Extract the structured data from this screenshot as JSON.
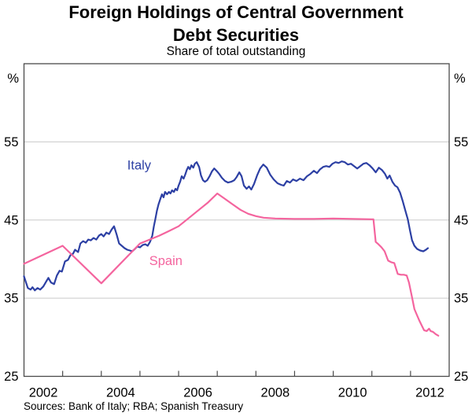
{
  "header": {
    "title_line1": "Foreign Holdings of Central Government",
    "title_line2": "Debt Securities",
    "subtitle": "Share of total outstanding"
  },
  "footer": {
    "sources": "Sources: Bank of Italy; RBA; Spanish Treasury"
  },
  "axes": {
    "unit_left": "%",
    "unit_right": "%"
  },
  "chart_data": {
    "type": "line",
    "title": "Foreign Holdings of Central Government Debt Securities",
    "subtitle": "Share of total outstanding",
    "ylabel": "%",
    "ylim": [
      25,
      65
    ],
    "yticks": [
      25,
      35,
      45,
      55
    ],
    "gridlines": [
      35,
      45,
      55
    ],
    "xlim": [
      2002,
      2013
    ],
    "xticks": [
      2003,
      2004,
      2005,
      2006,
      2007,
      2008,
      2009,
      2010,
      2011,
      2012
    ],
    "xtick_labels": [
      {
        "text": "2002",
        "at": 2002.5
      },
      {
        "text": "2004",
        "at": 2004.5
      },
      {
        "text": "2006",
        "at": 2006.5
      },
      {
        "text": "2008",
        "at": 2008.5
      },
      {
        "text": "2010",
        "at": 2010.5
      },
      {
        "text": "2012",
        "at": 2012.5
      }
    ],
    "grid": "horizontal",
    "legend_position": "inline-labels",
    "frame_color": "#4a4a4a",
    "grid_color": "#c9c9c9",
    "series": [
      {
        "name": "Italy",
        "color": "#2d40a4",
        "label_at": [
          2004.98,
          52.0
        ],
        "points": [
          [
            2002.0,
            37.8
          ],
          [
            2002.06,
            36.9
          ],
          [
            2002.1,
            36.3
          ],
          [
            2002.17,
            36.1
          ],
          [
            2002.22,
            36.4
          ],
          [
            2002.28,
            36.0
          ],
          [
            2002.35,
            36.3
          ],
          [
            2002.42,
            36.1
          ],
          [
            2002.5,
            36.5
          ],
          [
            2002.57,
            37.1
          ],
          [
            2002.63,
            37.6
          ],
          [
            2002.7,
            37.0
          ],
          [
            2002.78,
            36.8
          ],
          [
            2002.85,
            37.9
          ],
          [
            2002.92,
            38.5
          ],
          [
            2002.98,
            38.4
          ],
          [
            2003.06,
            39.7
          ],
          [
            2003.14,
            39.9
          ],
          [
            2003.2,
            40.5
          ],
          [
            2003.27,
            40.7
          ],
          [
            2003.32,
            41.2
          ],
          [
            2003.4,
            40.9
          ],
          [
            2003.46,
            42.0
          ],
          [
            2003.53,
            42.3
          ],
          [
            2003.6,
            42.1
          ],
          [
            2003.66,
            42.5
          ],
          [
            2003.73,
            42.4
          ],
          [
            2003.8,
            42.7
          ],
          [
            2003.87,
            42.5
          ],
          [
            2003.94,
            43.0
          ],
          [
            2004.0,
            43.2
          ],
          [
            2004.06,
            42.9
          ],
          [
            2004.13,
            43.4
          ],
          [
            2004.2,
            43.2
          ],
          [
            2004.27,
            43.8
          ],
          [
            2004.33,
            44.2
          ],
          [
            2004.4,
            43.1
          ],
          [
            2004.46,
            42.0
          ],
          [
            2004.53,
            41.7
          ],
          [
            2004.6,
            41.4
          ],
          [
            2004.67,
            41.2
          ],
          [
            2004.74,
            41.1
          ],
          [
            2004.8,
            41.0
          ],
          [
            2004.87,
            41.3
          ],
          [
            2004.93,
            41.6
          ],
          [
            2005.0,
            41.5
          ],
          [
            2005.07,
            41.8
          ],
          [
            2005.14,
            41.9
          ],
          [
            2005.2,
            41.7
          ],
          [
            2005.26,
            42.2
          ],
          [
            2005.32,
            43.0
          ],
          [
            2005.36,
            44.2
          ],
          [
            2005.4,
            45.2
          ],
          [
            2005.44,
            46.2
          ],
          [
            2005.48,
            47.0
          ],
          [
            2005.52,
            47.6
          ],
          [
            2005.57,
            48.3
          ],
          [
            2005.61,
            47.9
          ],
          [
            2005.65,
            48.6
          ],
          [
            2005.7,
            48.3
          ],
          [
            2005.75,
            48.6
          ],
          [
            2005.79,
            48.4
          ],
          [
            2005.83,
            48.8
          ],
          [
            2005.88,
            48.6
          ],
          [
            2005.92,
            49.0
          ],
          [
            2005.96,
            48.8
          ],
          [
            2006.0,
            49.4
          ],
          [
            2006.04,
            49.9
          ],
          [
            2006.08,
            50.6
          ],
          [
            2006.13,
            50.3
          ],
          [
            2006.17,
            50.8
          ],
          [
            2006.21,
            51.4
          ],
          [
            2006.25,
            51.8
          ],
          [
            2006.29,
            51.5
          ],
          [
            2006.33,
            52.0
          ],
          [
            2006.38,
            51.7
          ],
          [
            2006.42,
            52.2
          ],
          [
            2006.47,
            52.4
          ],
          [
            2006.53,
            51.8
          ],
          [
            2006.58,
            50.7
          ],
          [
            2006.63,
            50.1
          ],
          [
            2006.68,
            49.9
          ],
          [
            2006.74,
            50.1
          ],
          [
            2006.8,
            50.6
          ],
          [
            2006.86,
            51.2
          ],
          [
            2006.92,
            51.6
          ],
          [
            2006.98,
            51.3
          ],
          [
            2007.05,
            50.9
          ],
          [
            2007.12,
            50.4
          ],
          [
            2007.2,
            50.0
          ],
          [
            2007.28,
            49.8
          ],
          [
            2007.36,
            49.9
          ],
          [
            2007.44,
            50.1
          ],
          [
            2007.5,
            50.5
          ],
          [
            2007.57,
            51.1
          ],
          [
            2007.63,
            50.6
          ],
          [
            2007.69,
            49.4
          ],
          [
            2007.76,
            49.0
          ],
          [
            2007.82,
            49.3
          ],
          [
            2007.88,
            48.9
          ],
          [
            2007.95,
            49.6
          ],
          [
            2008.03,
            50.7
          ],
          [
            2008.11,
            51.6
          ],
          [
            2008.19,
            52.1
          ],
          [
            2008.28,
            51.7
          ],
          [
            2008.37,
            50.8
          ],
          [
            2008.46,
            50.2
          ],
          [
            2008.56,
            49.7
          ],
          [
            2008.65,
            49.5
          ],
          [
            2008.72,
            49.4
          ],
          [
            2008.8,
            50.0
          ],
          [
            2008.88,
            49.8
          ],
          [
            2008.96,
            50.2
          ],
          [
            2009.05,
            50.0
          ],
          [
            2009.14,
            50.3
          ],
          [
            2009.23,
            50.1
          ],
          [
            2009.32,
            50.6
          ],
          [
            2009.41,
            50.9
          ],
          [
            2009.5,
            51.3
          ],
          [
            2009.58,
            51.0
          ],
          [
            2009.66,
            51.5
          ],
          [
            2009.74,
            51.8
          ],
          [
            2009.82,
            51.9
          ],
          [
            2009.9,
            51.8
          ],
          [
            2009.98,
            52.2
          ],
          [
            2010.06,
            52.4
          ],
          [
            2010.14,
            52.3
          ],
          [
            2010.22,
            52.5
          ],
          [
            2010.3,
            52.4
          ],
          [
            2010.38,
            52.1
          ],
          [
            2010.46,
            52.2
          ],
          [
            2010.54,
            51.9
          ],
          [
            2010.62,
            51.6
          ],
          [
            2010.7,
            51.9
          ],
          [
            2010.78,
            52.2
          ],
          [
            2010.86,
            52.3
          ],
          [
            2010.94,
            52.0
          ],
          [
            2011.02,
            51.6
          ],
          [
            2011.1,
            51.1
          ],
          [
            2011.18,
            51.7
          ],
          [
            2011.26,
            51.4
          ],
          [
            2011.34,
            50.9
          ],
          [
            2011.4,
            50.3
          ],
          [
            2011.46,
            50.7
          ],
          [
            2011.53,
            49.9
          ],
          [
            2011.6,
            49.4
          ],
          [
            2011.66,
            49.2
          ],
          [
            2011.73,
            48.5
          ],
          [
            2011.8,
            47.4
          ],
          [
            2011.86,
            46.3
          ],
          [
            2011.93,
            45.1
          ],
          [
            2011.98,
            43.8
          ],
          [
            2012.04,
            42.4
          ],
          [
            2012.1,
            41.7
          ],
          [
            2012.17,
            41.3
          ],
          [
            2012.25,
            41.1
          ],
          [
            2012.33,
            41.0
          ],
          [
            2012.4,
            41.2
          ],
          [
            2012.45,
            41.4
          ]
        ]
      },
      {
        "name": "Spain",
        "color": "#f4649e",
        "label_at": [
          2005.67,
          39.8
        ],
        "points": [
          [
            2002.0,
            39.4
          ],
          [
            2003.0,
            41.7
          ],
          [
            2004.0,
            36.9
          ],
          [
            2005.0,
            42.0
          ],
          [
            2005.25,
            42.5
          ],
          [
            2005.5,
            43.0
          ],
          [
            2005.75,
            43.6
          ],
          [
            2006.0,
            44.2
          ],
          [
            2006.25,
            45.2
          ],
          [
            2006.5,
            46.2
          ],
          [
            2006.75,
            47.2
          ],
          [
            2007.0,
            48.4
          ],
          [
            2007.2,
            47.7
          ],
          [
            2007.4,
            47.0
          ],
          [
            2007.6,
            46.3
          ],
          [
            2007.8,
            45.8
          ],
          [
            2008.0,
            45.5
          ],
          [
            2008.2,
            45.3
          ],
          [
            2008.5,
            45.2
          ],
          [
            2009.0,
            45.15
          ],
          [
            2009.5,
            45.15
          ],
          [
            2010.0,
            45.2
          ],
          [
            2010.5,
            45.15
          ],
          [
            2011.0,
            45.1
          ],
          [
            2011.04,
            45.1
          ],
          [
            2011.1,
            42.2
          ],
          [
            2011.17,
            41.9
          ],
          [
            2011.25,
            41.5
          ],
          [
            2011.33,
            41.0
          ],
          [
            2011.42,
            39.8
          ],
          [
            2011.5,
            39.6
          ],
          [
            2011.58,
            39.5
          ],
          [
            2011.67,
            38.1
          ],
          [
            2011.75,
            38.0
          ],
          [
            2011.83,
            38.0
          ],
          [
            2011.9,
            37.9
          ],
          [
            2011.96,
            37.0
          ],
          [
            2012.04,
            35.1
          ],
          [
            2012.1,
            33.6
          ],
          [
            2012.17,
            32.8
          ],
          [
            2012.23,
            32.1
          ],
          [
            2012.3,
            31.4
          ],
          [
            2012.35,
            30.9
          ],
          [
            2012.42,
            30.8
          ],
          [
            2012.48,
            31.1
          ],
          [
            2012.52,
            30.8
          ],
          [
            2012.58,
            30.7
          ],
          [
            2012.65,
            30.4
          ],
          [
            2012.72,
            30.2
          ]
        ]
      }
    ]
  }
}
